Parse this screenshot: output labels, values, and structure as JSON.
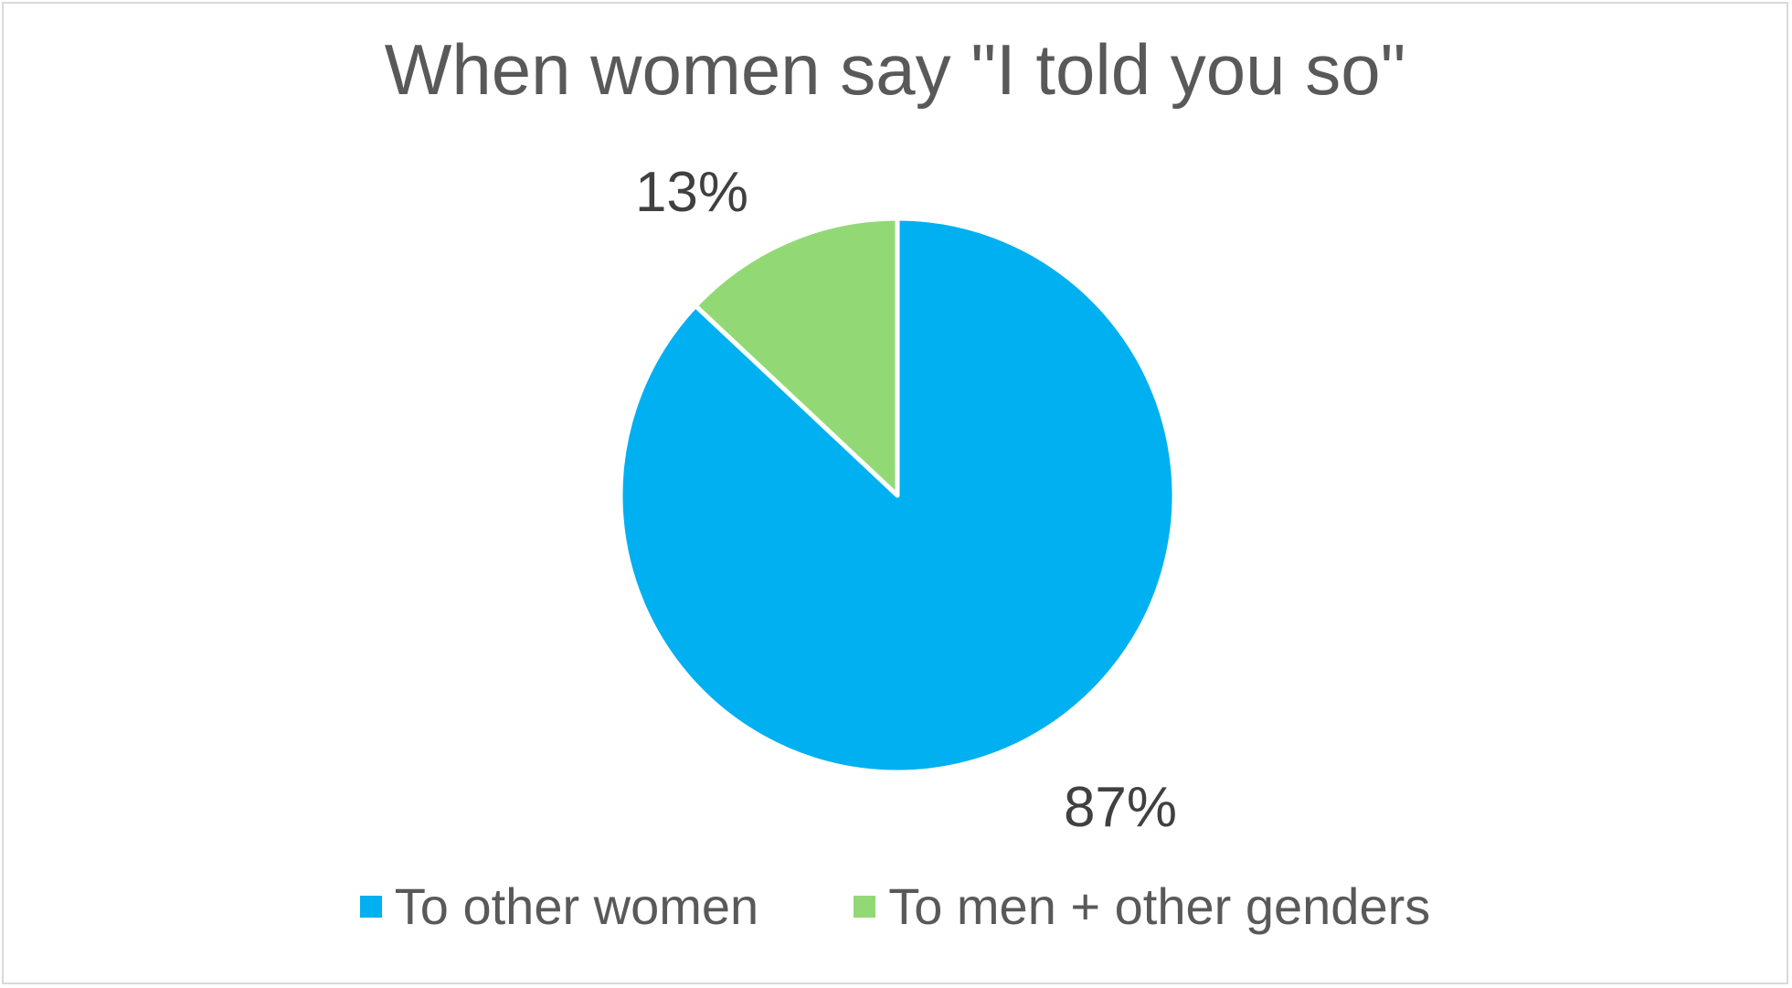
{
  "chart_data": {
    "type": "pie",
    "title": "When women say \"I told you so\"",
    "slices": [
      {
        "name": "To other women",
        "value": 87,
        "label": "87%",
        "color": "#00B0F0"
      },
      {
        "name": "To men + other genders",
        "value": 13,
        "label": "13%",
        "color": "#92D976"
      }
    ],
    "start_angle_deg": 0,
    "direction": "clockwise",
    "legend_placement": "bottom",
    "slice_border_color": "#ffffff"
  }
}
